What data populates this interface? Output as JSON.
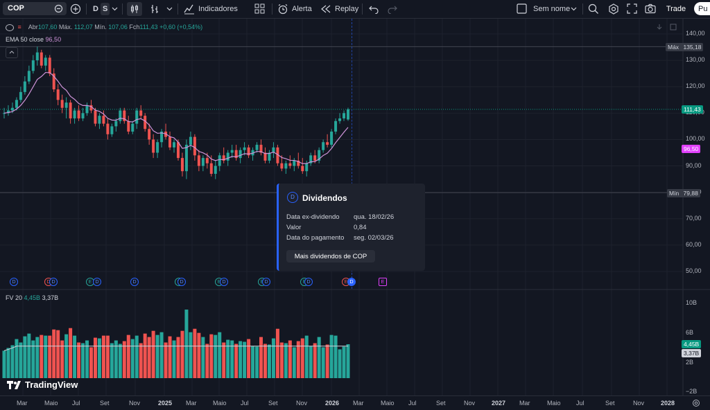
{
  "toolbar": {
    "symbol": "COP",
    "interval_d": "D",
    "interval_s": "S",
    "indicators_label": "Indicadores",
    "alert_label": "Alerta",
    "replay_label": "Replay",
    "layout_name": "Sem nome",
    "trade_label": "Trade",
    "publish_label": "Pu"
  },
  "legend": {
    "open_label": "Abr",
    "open": "107,60",
    "high_label": "Máx.",
    "high": "112,07",
    "low_label": "Mín.",
    "low": "107,06",
    "close_label": "Fch",
    "close": "111,43",
    "change": "+0,60 (+0,54%)",
    "ema_label": "EMA 50 close",
    "ema_value": "96,50",
    "vol_label": "FV 20",
    "vol_value1": "4,45B",
    "vol_value2": "3,37B"
  },
  "price_axis": {
    "ticks": [
      "140,00",
      "130,00",
      "120,00",
      "110,00",
      "100,00",
      "90,00",
      "80,00",
      "70,00",
      "60,00",
      "50,00"
    ],
    "max_label": "Máx",
    "max_value": "135,18",
    "min_label": "Mín",
    "min_value": "79,88",
    "last_price": "111,43",
    "ema_price": "96,50"
  },
  "volume_axis": {
    "ticks": [
      "10B",
      "6B",
      "2B",
      "−2B"
    ],
    "tag1": "4,45B",
    "tag2": "3,37B"
  },
  "time_axis": {
    "labels": [
      "Mar",
      "Maio",
      "Jul",
      "Set",
      "Nov",
      "2025",
      "Mar",
      "Maio",
      "Jul",
      "Set",
      "Nov",
      "2026",
      "Mar",
      "Maio",
      "Jul",
      "Set",
      "Nov",
      "2027",
      "Mar",
      "Maio",
      "Jul",
      "Set",
      "Nov",
      "2028"
    ]
  },
  "tooltip": {
    "icon": "D",
    "title": "Dividendos",
    "ex_label": "Data ex-dividendo",
    "ex_value": "qua. 18/02/26",
    "value_label": "Valor",
    "value": "0,84",
    "pay_label": "Data do pagamento",
    "pay_value": "seg. 02/03/26",
    "button": "Mais dividendos de COP"
  },
  "logo_text": "TradingView",
  "colors": {
    "up": "#26a69a",
    "down": "#ef5350",
    "ema": "#ce93d8",
    "accent": "#2962ff"
  },
  "chart_data": {
    "type": "candlestick",
    "symbol": "COP",
    "interval": "S",
    "ylim": [
      45,
      145
    ],
    "ema": {
      "name": "EMA 50 close",
      "value": 96.5
    },
    "candles_ohlc_approx": [
      [
        110,
        112,
        108,
        110
      ],
      [
        110,
        113,
        109,
        111
      ],
      [
        111,
        114,
        110,
        112
      ],
      [
        112,
        116,
        111,
        115
      ],
      [
        115,
        120,
        114,
        118
      ],
      [
        118,
        124,
        117,
        122
      ],
      [
        122,
        128,
        121,
        126
      ],
      [
        126,
        132,
        125,
        130
      ],
      [
        130,
        135.2,
        128,
        133
      ],
      [
        133,
        134,
        127,
        128
      ],
      [
        128,
        132,
        126,
        131
      ],
      [
        131,
        132,
        124,
        125
      ],
      [
        125,
        127,
        118,
        119
      ],
      [
        119,
        121,
        113,
        115
      ],
      [
        115,
        117,
        110,
        112
      ],
      [
        112,
        116,
        108,
        114
      ],
      [
        114,
        115,
        106,
        108
      ],
      [
        108,
        112,
        106,
        111
      ],
      [
        111,
        113,
        107,
        108
      ],
      [
        108,
        112,
        107,
        110
      ],
      [
        110,
        114,
        109,
        113
      ],
      [
        113,
        115,
        110,
        111
      ],
      [
        111,
        112,
        105,
        106
      ],
      [
        106,
        110,
        104,
        109
      ],
      [
        109,
        111,
        105,
        106
      ],
      [
        106,
        108,
        100,
        102
      ],
      [
        102,
        106,
        101,
        105
      ],
      [
        105,
        108,
        103,
        107
      ],
      [
        107,
        112,
        106,
        111
      ],
      [
        111,
        112,
        106,
        107
      ],
      [
        107,
        109,
        102,
        103
      ],
      [
        103,
        107,
        102,
        106
      ],
      [
        106,
        112,
        104,
        111
      ],
      [
        111,
        113,
        108,
        109
      ],
      [
        109,
        110,
        103,
        104
      ],
      [
        104,
        106,
        98,
        100
      ],
      [
        100,
        102,
        93,
        95
      ],
      [
        95,
        100,
        93,
        99
      ],
      [
        99,
        104,
        97,
        103
      ],
      [
        103,
        106,
        100,
        101
      ],
      [
        101,
        103,
        96,
        97
      ],
      [
        97,
        100,
        95,
        99
      ],
      [
        99,
        100,
        92,
        93
      ],
      [
        93,
        95,
        86,
        88
      ],
      [
        88,
        100,
        85,
        98
      ],
      [
        98,
        103,
        96,
        101
      ],
      [
        101,
        102,
        92,
        94
      ],
      [
        94,
        96,
        88,
        90
      ],
      [
        90,
        94,
        88,
        93
      ],
      [
        93,
        95,
        89,
        91
      ],
      [
        91,
        94,
        86,
        87
      ],
      [
        87,
        92,
        85,
        90
      ],
      [
        90,
        95,
        88,
        94
      ],
      [
        94,
        97,
        91,
        92
      ],
      [
        92,
        96,
        90,
        95
      ],
      [
        95,
        98,
        93,
        96
      ],
      [
        96,
        98,
        92,
        93
      ],
      [
        93,
        97,
        91,
        96
      ],
      [
        96,
        99,
        94,
        97
      ],
      [
        97,
        98,
        93,
        94
      ],
      [
        94,
        97,
        92,
        96
      ],
      [
        96,
        99,
        95,
        98
      ],
      [
        98,
        100,
        94,
        95
      ],
      [
        95,
        97,
        91,
        92
      ],
      [
        92,
        96,
        91,
        95
      ],
      [
        95,
        99,
        93,
        97
      ],
      [
        97,
        98,
        90,
        91
      ],
      [
        91,
        94,
        88,
        89
      ],
      [
        89,
        92,
        87,
        91
      ],
      [
        91,
        94,
        89,
        90
      ],
      [
        90,
        93,
        88,
        92
      ],
      [
        92,
        95,
        89,
        90
      ],
      [
        90,
        93,
        87,
        88
      ],
      [
        88,
        92,
        86,
        91
      ],
      [
        91,
        95,
        90,
        94
      ],
      [
        94,
        96,
        91,
        92
      ],
      [
        92,
        97,
        91,
        96
      ],
      [
        96,
        100,
        95,
        99
      ],
      [
        99,
        102,
        97,
        98
      ],
      [
        98,
        104,
        97,
        103
      ],
      [
        103,
        108,
        102,
        107
      ],
      [
        107,
        110,
        106,
        108
      ],
      [
        108,
        111,
        107,
        110
      ],
      [
        107.6,
        112.07,
        107.06,
        111.43
      ]
    ]
  }
}
